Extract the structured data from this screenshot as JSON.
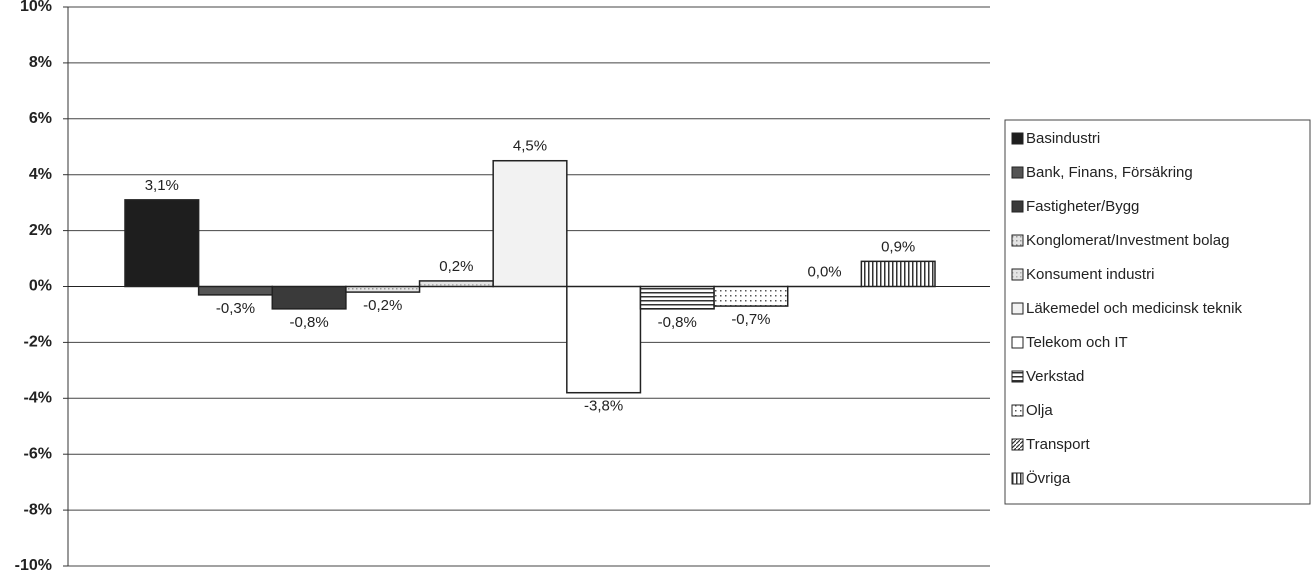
{
  "chart_data": {
    "type": "bar",
    "categories": [
      null
    ],
    "series": [
      {
        "name": "Basindustri",
        "color": "#1e1e1e",
        "pattern": "solid",
        "values": [
          3.1
        ],
        "value_labels": [
          "3,1%"
        ]
      },
      {
        "name": "Bank, Finans, Försäkring",
        "color": "#555555",
        "pattern": "solid",
        "values": [
          -0.3
        ],
        "value_labels": [
          "-0,3%"
        ]
      },
      {
        "name": "Fastigheter/Bygg",
        "color": "#3a3a3a",
        "pattern": "solid",
        "values": [
          -0.8
        ],
        "value_labels": [
          "-0,8%"
        ]
      },
      {
        "name": "Konglomerat/Investment bolag",
        "color": "#9a9a9a",
        "pattern": "dots",
        "values": [
          -0.2
        ],
        "value_labels": [
          "-0,2%"
        ]
      },
      {
        "name": "Konsument industri",
        "color": "#b0b0b0",
        "pattern": "dots",
        "values": [
          0.2
        ],
        "value_labels": [
          "0,2%"
        ]
      },
      {
        "name": "Läkemedel och medicinsk teknik",
        "color": "#f2f2f2",
        "pattern": "solid",
        "values": [
          4.5
        ],
        "value_labels": [
          "4,5%"
        ]
      },
      {
        "name": "Telekom och IT",
        "color": "#ffffff",
        "pattern": "solid",
        "values": [
          -3.8
        ],
        "value_labels": [
          "-3,8%"
        ]
      },
      {
        "name": "Verkstad",
        "color": "#333333",
        "pattern": "hlines",
        "values": [
          -0.8
        ],
        "value_labels": [
          "-0,8%"
        ]
      },
      {
        "name": "Olja",
        "color": "#555555",
        "pattern": "sparse-dots",
        "values": [
          -0.7
        ],
        "value_labels": [
          "-0,7%"
        ]
      },
      {
        "name": "Transport",
        "color": "#333333",
        "pattern": "diagonal",
        "values": [
          0.0
        ],
        "value_labels": [
          "0,0%"
        ]
      },
      {
        "name": "Övriga",
        "color": "#333333",
        "pattern": "vlines",
        "values": [
          0.9
        ],
        "value_labels": [
          "0,9%"
        ]
      }
    ],
    "ylim": [
      -10,
      10
    ],
    "yticks": [
      {
        "value": -10,
        "label": "-10%"
      },
      {
        "value": -8,
        "label": "-8%"
      },
      {
        "value": -6,
        "label": "-6%"
      },
      {
        "value": -4,
        "label": "-4%"
      },
      {
        "value": -2,
        "label": "-2%"
      },
      {
        "value": 0,
        "label": "0%"
      },
      {
        "value": 2,
        "label": "2%"
      },
      {
        "value": 4,
        "label": "4%"
      },
      {
        "value": 6,
        "label": "6%"
      },
      {
        "value": 8,
        "label": "8%"
      },
      {
        "value": 10,
        "label": "10%"
      }
    ],
    "grid": true,
    "legend": "right"
  }
}
